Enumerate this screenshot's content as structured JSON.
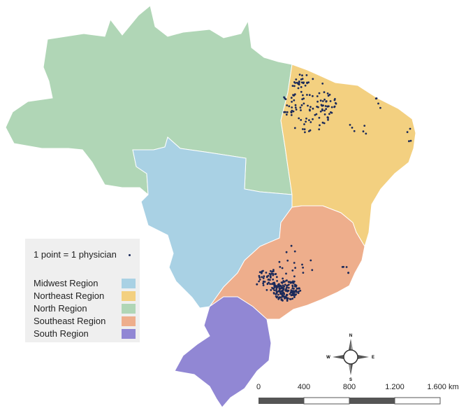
{
  "legend": {
    "point_label": "1 point = 1 physician",
    "regions": [
      {
        "label": "Midwest Region",
        "color": "#a9d1e4"
      },
      {
        "label": "Northeast Region",
        "color": "#f3d080"
      },
      {
        "label": "North Region",
        "color": "#b0d6b6"
      },
      {
        "label": "Southeast Region",
        "color": "#eeae8c"
      },
      {
        "label": "South Region",
        "color": "#9187d4"
      }
    ]
  },
  "point_color": "#1b2a5a",
  "compass": {
    "n": "N",
    "s": "S",
    "e": "E",
    "w": "W"
  },
  "scale_bar": {
    "ticks": [
      "0",
      "400",
      "800",
      "1.200",
      "1.600 km"
    ]
  }
}
